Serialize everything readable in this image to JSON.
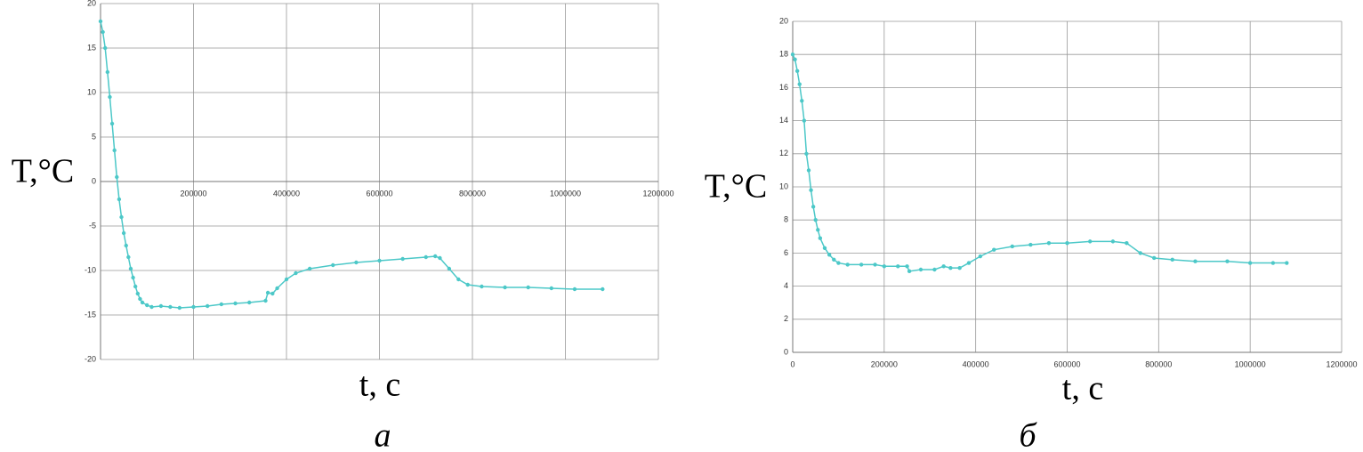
{
  "chart_data": [
    {
      "type": "line",
      "y_label": "T,°C",
      "x_label": "t, c",
      "caption": "а",
      "color": "#4cc8c8",
      "xlim": [
        0,
        1200000
      ],
      "ylim": [
        -20,
        20
      ],
      "xticks": [
        200000,
        400000,
        600000,
        800000,
        1000000,
        1200000
      ],
      "yticks": [
        -20,
        -15,
        -10,
        -5,
        0,
        5,
        10,
        15,
        20
      ],
      "grid": true,
      "x": [
        0,
        5000,
        10000,
        15000,
        20000,
        25000,
        30000,
        35000,
        40000,
        45000,
        50000,
        55000,
        60000,
        65000,
        70000,
        75000,
        80000,
        85000,
        90000,
        100000,
        110000,
        130000,
        150000,
        170000,
        200000,
        230000,
        260000,
        290000,
        320000,
        355000,
        360000,
        370000,
        380000,
        400000,
        420000,
        450000,
        500000,
        550000,
        600000,
        650000,
        700000,
        720000,
        730000,
        750000,
        770000,
        790000,
        820000,
        870000,
        920000,
        970000,
        1020000,
        1080000
      ],
      "values": [
        18,
        16.8,
        15,
        12.3,
        9.5,
        6.5,
        3.5,
        0.5,
        -2,
        -4,
        -5.8,
        -7.2,
        -8.5,
        -9.8,
        -10.8,
        -11.8,
        -12.6,
        -13.2,
        -13.6,
        -13.9,
        -14.1,
        -14,
        -14.1,
        -14.2,
        -14.1,
        -14,
        -13.8,
        -13.7,
        -13.6,
        -13.4,
        -12.5,
        -12.6,
        -12,
        -11,
        -10.3,
        -9.8,
        -9.4,
        -9.1,
        -8.9,
        -8.7,
        -8.5,
        -8.4,
        -8.6,
        -9.8,
        -11,
        -11.6,
        -11.8,
        -11.9,
        -11.9,
        -12,
        -12.1,
        -12.1
      ]
    },
    {
      "type": "line",
      "y_label": "T,°C",
      "x_label": "t, c",
      "caption": "б",
      "color": "#4cc8c8",
      "xlim": [
        0,
        1200000
      ],
      "ylim": [
        0,
        20
      ],
      "xticks": [
        0,
        200000,
        400000,
        600000,
        800000,
        1000000,
        1200000
      ],
      "yticks": [
        0,
        2,
        4,
        6,
        8,
        10,
        12,
        14,
        16,
        18,
        20
      ],
      "grid": true,
      "x": [
        0,
        5000,
        10000,
        15000,
        20000,
        25000,
        30000,
        35000,
        40000,
        45000,
        50000,
        55000,
        60000,
        70000,
        80000,
        90000,
        100000,
        120000,
        150000,
        180000,
        200000,
        230000,
        250000,
        255000,
        280000,
        310000,
        330000,
        345000,
        365000,
        385000,
        410000,
        440000,
        480000,
        520000,
        560000,
        600000,
        650000,
        700000,
        730000,
        760000,
        790000,
        830000,
        880000,
        950000,
        1000000,
        1050000,
        1080000
      ],
      "values": [
        18,
        17.7,
        17,
        16.2,
        15.2,
        14,
        12,
        11,
        9.8,
        8.8,
        8,
        7.4,
        6.9,
        6.3,
        5.9,
        5.6,
        5.4,
        5.3,
        5.3,
        5.3,
        5.2,
        5.2,
        5.2,
        4.9,
        5,
        5,
        5.2,
        5.1,
        5.1,
        5.4,
        5.8,
        6.2,
        6.4,
        6.5,
        6.6,
        6.6,
        6.7,
        6.7,
        6.6,
        6,
        5.7,
        5.6,
        5.5,
        5.5,
        5.4,
        5.4,
        5.4
      ]
    }
  ]
}
